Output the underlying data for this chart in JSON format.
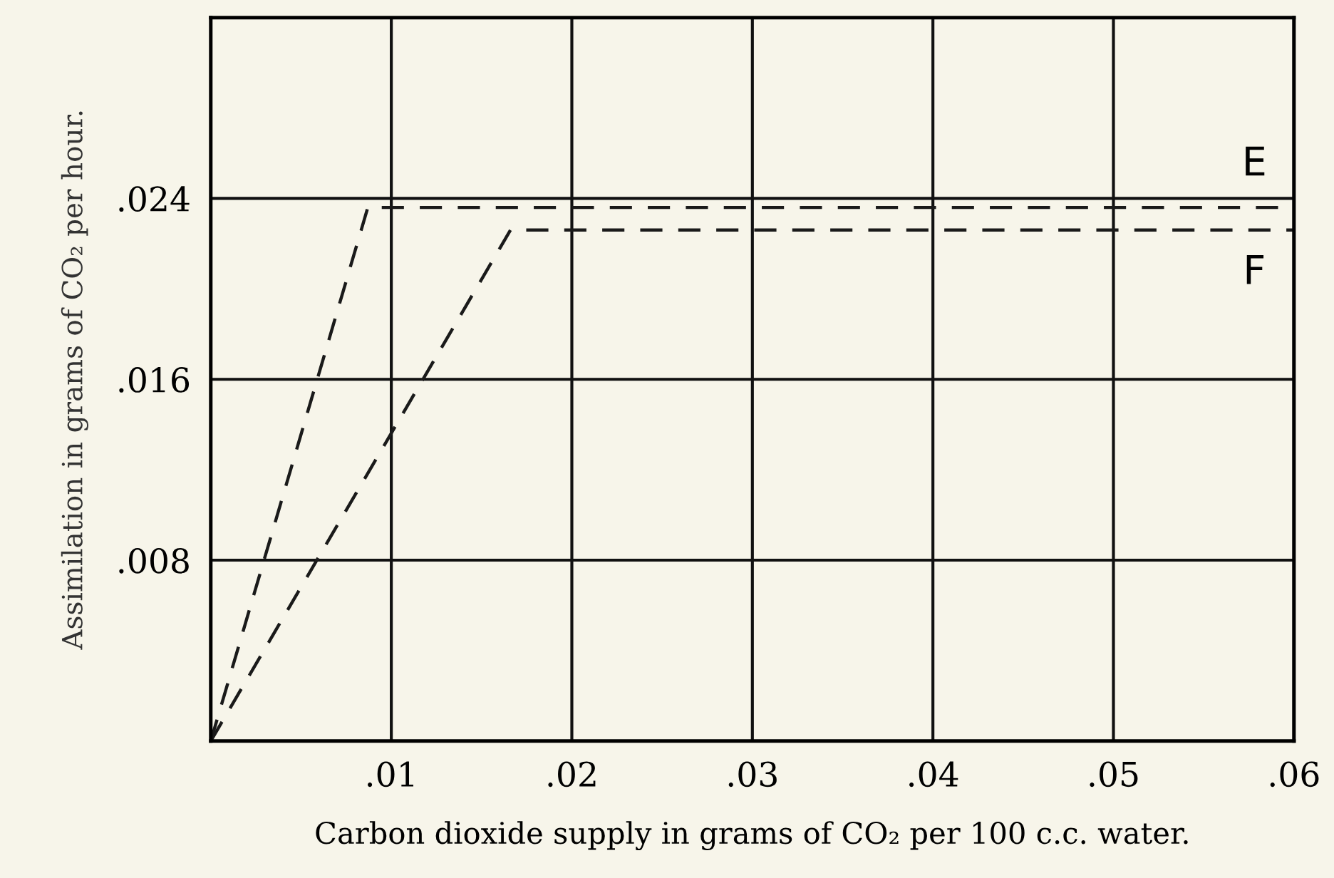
{
  "chart_data": {
    "type": "line",
    "xlabel": "Carbon dioxide supply in grams of CO₂ per 100 c.c. water.",
    "ylabel": "Assimilation in grams of CO₂ per hour.",
    "xlim": [
      0,
      0.06
    ],
    "ylim": [
      0,
      0.032
    ],
    "xticks": [
      {
        "value": 0.01,
        "label": ".01"
      },
      {
        "value": 0.02,
        "label": ".02"
      },
      {
        "value": 0.03,
        "label": ".03"
      },
      {
        "value": 0.04,
        "label": ".04"
      },
      {
        "value": 0.05,
        "label": ".05"
      },
      {
        "value": 0.06,
        "label": ".06"
      }
    ],
    "yticks": [
      {
        "value": 0.008,
        "label": ".008"
      },
      {
        "value": 0.016,
        "label": ".016"
      },
      {
        "value": 0.024,
        "label": ".024"
      }
    ],
    "grid": true,
    "line_style": "dashed",
    "marker": "none",
    "series": [
      {
        "name": "E",
        "color": "#1a1a1a",
        "x": [
          0,
          0.0087,
          0.06
        ],
        "values": [
          0,
          0.0236,
          0.0236
        ]
      },
      {
        "name": "F",
        "color": "#1a1a1a",
        "x": [
          0,
          0.0166,
          0.06
        ],
        "values": [
          0,
          0.0226,
          0.0226
        ]
      }
    ]
  }
}
